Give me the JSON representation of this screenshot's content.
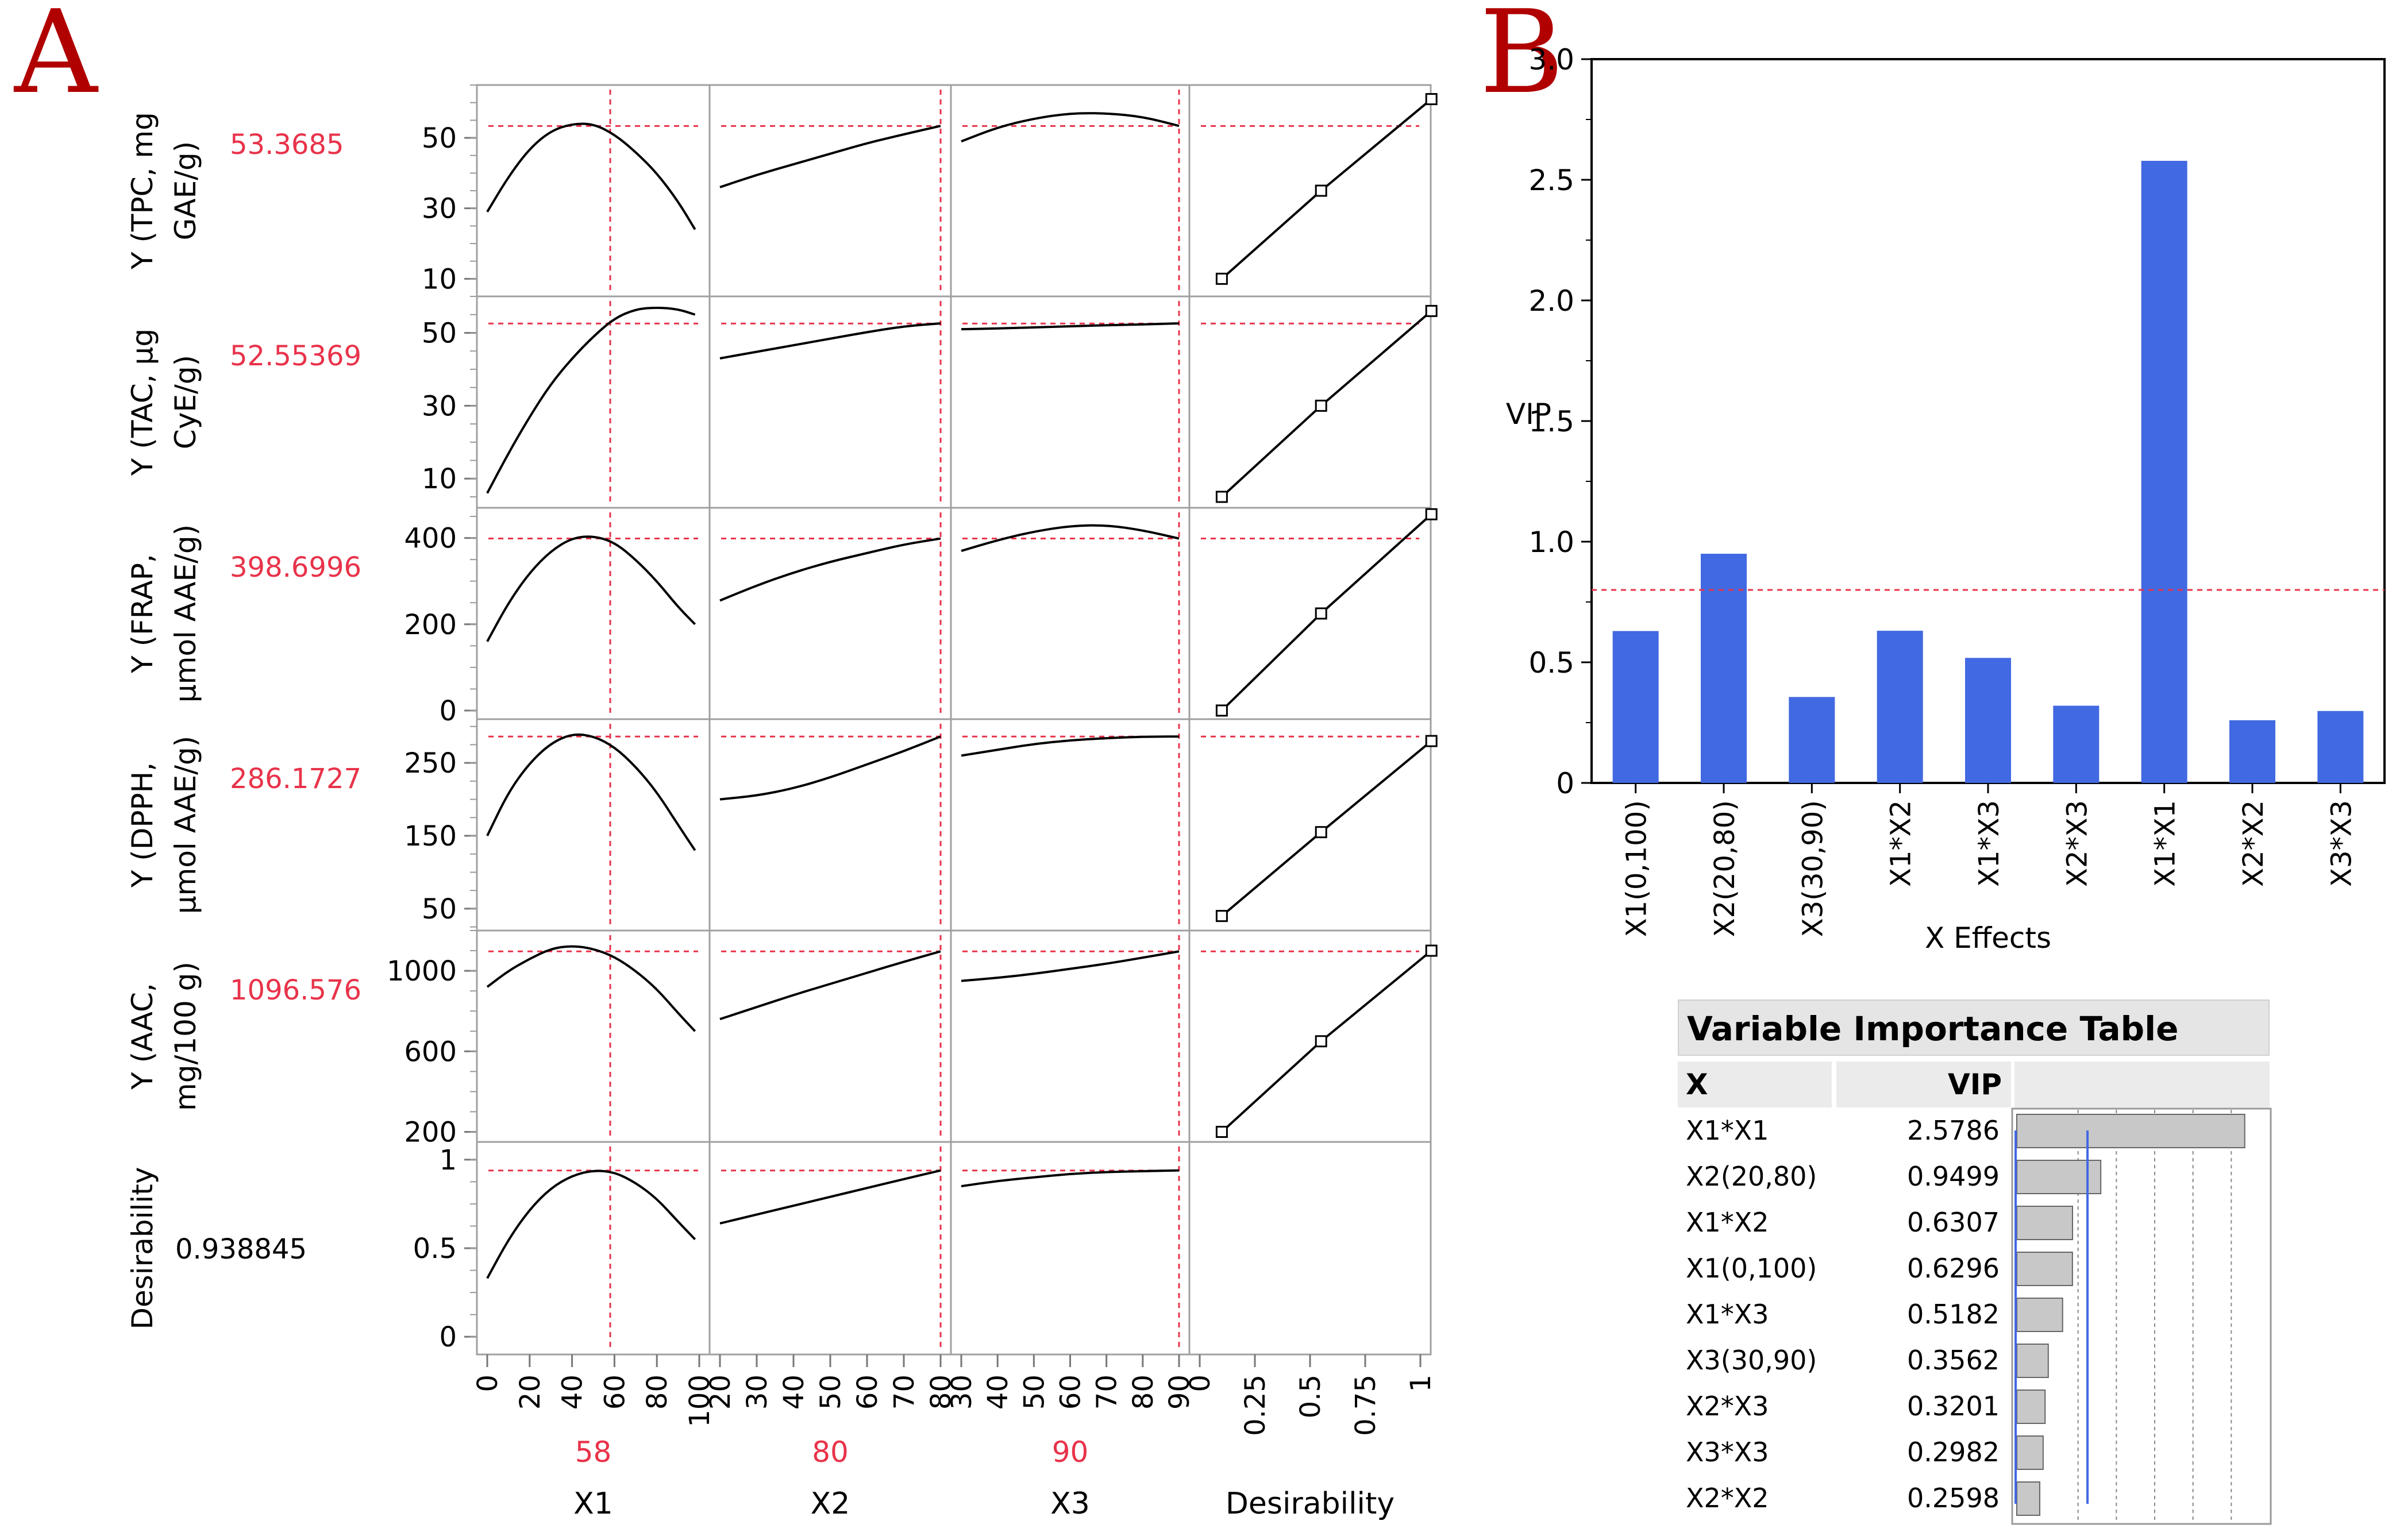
{
  "panel_labels": {
    "a": "A",
    "b": "B"
  },
  "colors": {
    "accent_red": "#e8334a",
    "bar_blue": "#4169e1",
    "gray_bar": "#c8c8c8",
    "panel_letter": "#b00000"
  },
  "chart_data": [
    {
      "type": "line",
      "title": "Prediction profiler",
      "x_factors": [
        {
          "name": "X1",
          "current": "58",
          "x_value": 58,
          "xlim": [
            0,
            100
          ],
          "ticks": [
            "0",
            "20",
            "40",
            "60",
            "80",
            "100"
          ],
          "tick_values": [
            0,
            20,
            40,
            60,
            80,
            100
          ]
        },
        {
          "name": "X2",
          "current": "80",
          "x_value": 80,
          "xlim": [
            20,
            80
          ],
          "ticks": [
            "20",
            "30",
            "40",
            "50",
            "60",
            "70",
            "80"
          ],
          "tick_values": [
            20,
            30,
            40,
            50,
            60,
            70,
            80
          ]
        },
        {
          "name": "X3",
          "current": "90",
          "x_value": 90,
          "xlim": [
            30,
            90
          ],
          "ticks": [
            "30",
            "40",
            "50",
            "60",
            "70",
            "80",
            "90"
          ],
          "tick_values": [
            30,
            40,
            50,
            60,
            70,
            80,
            90
          ]
        },
        {
          "name": "Desirability",
          "current": "",
          "x_value": null,
          "xlim": [
            0,
            1
          ],
          "ticks": [
            "0",
            "0.25",
            "0.5",
            "0.75",
            "1"
          ],
          "tick_values": [
            0,
            0.25,
            0.5,
            0.75,
            1
          ]
        }
      ],
      "responses": [
        {
          "label_line1": "Y (TPC, mg",
          "label_line2": "GAE/g)",
          "value": "53.3685",
          "current_y": 53.3685,
          "ylim": [
            5,
            65
          ],
          "ticks": [
            "10",
            "30",
            "50"
          ],
          "tick_values": [
            10,
            30,
            50
          ],
          "curves": [
            {
              "x": [
                0,
                10,
                20,
                30,
                40,
                50,
                60,
                70,
                80,
                90,
                98
              ],
              "y": [
                29,
                39,
                47,
                52,
                54,
                54,
                51,
                46,
                40,
                32,
                24
              ]
            },
            {
              "x": [
                20,
                30,
                40,
                50,
                60,
                70,
                80
              ],
              "y": [
                36,
                39.5,
                42.5,
                45.5,
                48.5,
                51,
                53.4
              ]
            },
            {
              "x": [
                30,
                40,
                50,
                60,
                70,
                80,
                90
              ],
              "y": [
                49,
                53,
                55.5,
                57,
                57,
                56,
                53.4
              ]
            },
            {
              "x": [
                0.1,
                0.55,
                1.05
              ],
              "y": [
                10,
                35,
                61
              ]
            }
          ]
        },
        {
          "label_line1": "Y (TAC, µg",
          "label_line2": "CyE/g)",
          "value": "52.55369",
          "current_y": 52.55369,
          "ylim": [
            2,
            60
          ],
          "ticks": [
            "10",
            "30",
            "50"
          ],
          "tick_values": [
            10,
            30,
            50
          ],
          "curves": [
            {
              "x": [
                0,
                10,
                20,
                30,
                40,
                50,
                60,
                70,
                80,
                90,
                98
              ],
              "y": [
                6,
                17,
                27,
                36,
                43,
                49,
                54,
                56.5,
                57,
                56.5,
                55
              ]
            },
            {
              "x": [
                20,
                30,
                40,
                50,
                60,
                70,
                80
              ],
              "y": [
                43,
                44.8,
                46.6,
                48.4,
                50.2,
                51.8,
                52.6
              ]
            },
            {
              "x": [
                30,
                40,
                50,
                60,
                70,
                80,
                90
              ],
              "y": [
                51,
                51.2,
                51.5,
                51.8,
                52.1,
                52.3,
                52.6
              ]
            },
            {
              "x": [
                0.1,
                0.55,
                1.05
              ],
              "y": [
                5,
                30,
                56
              ]
            }
          ]
        },
        {
          "label_line1": "Y (FRAP,",
          "label_line2": "µmol AAE/g)",
          "value": "398.6996",
          "current_y": 398.6996,
          "ylim": [
            -20,
            470
          ],
          "ticks": [
            "0",
            "200",
            "400"
          ],
          "tick_values": [
            0,
            200,
            400
          ],
          "curves": [
            {
              "x": [
                0,
                10,
                20,
                30,
                40,
                50,
                60,
                70,
                80,
                90,
                98
              ],
              "y": [
                160,
                250,
                320,
                370,
                400,
                405,
                390,
                350,
                300,
                240,
                200
              ]
            },
            {
              "x": [
                20,
                30,
                40,
                50,
                60,
                70,
                80
              ],
              "y": [
                255,
                290,
                320,
                345,
                365,
                385,
                398.7
              ]
            },
            {
              "x": [
                30,
                40,
                50,
                60,
                70,
                80,
                90
              ],
              "y": [
                370,
                395,
                415,
                428,
                430,
                418,
                398.7
              ]
            },
            {
              "x": [
                0.1,
                0.55,
                1.05
              ],
              "y": [
                0,
                225,
                455
              ]
            }
          ]
        },
        {
          "label_line1": "Y (DPPH,",
          "label_line2": "µmol AAE/g)",
          "value": "286.1727",
          "current_y": 286.1727,
          "ylim": [
            20,
            310
          ],
          "ticks": [
            "50",
            "150",
            "250"
          ],
          "tick_values": [
            50,
            150,
            250
          ],
          "curves": [
            {
              "x": [
                0,
                10,
                20,
                30,
                40,
                50,
                60,
                70,
                80,
                90,
                98
              ],
              "y": [
                150,
                210,
                250,
                277,
                290,
                287,
                272,
                245,
                210,
                165,
                130
              ]
            },
            {
              "x": [
                20,
                30,
                40,
                50,
                60,
                70,
                80
              ],
              "y": [
                200,
                205,
                215,
                230,
                248,
                266,
                286.2
              ]
            },
            {
              "x": [
                30,
                40,
                50,
                60,
                70,
                80,
                90
              ],
              "y": [
                260,
                268,
                276,
                281,
                284,
                286,
                286.2
              ]
            },
            {
              "x": [
                0.1,
                0.55,
                1.05
              ],
              "y": [
                40,
                155,
                280
              ]
            }
          ]
        },
        {
          "label_line1": "Y (AAC,",
          "label_line2": "mg/100 g)",
          "value": "1096.576",
          "current_y": 1096.576,
          "ylim": [
            150,
            1200
          ],
          "ticks": [
            "200",
            "600",
            "1000"
          ],
          "tick_values": [
            200,
            600,
            1000
          ],
          "curves": [
            {
              "x": [
                0,
                10,
                20,
                30,
                40,
                50,
                60,
                70,
                80,
                90,
                98
              ],
              "y": [
                920,
                1000,
                1060,
                1110,
                1125,
                1110,
                1070,
                1000,
                910,
                790,
                700
              ]
            },
            {
              "x": [
                20,
                30,
                40,
                50,
                60,
                70,
                80
              ],
              "y": [
                760,
                820,
                880,
                935,
                990,
                1045,
                1096.6
              ]
            },
            {
              "x": [
                30,
                40,
                50,
                60,
                70,
                80,
                90
              ],
              "y": [
                950,
                965,
                985,
                1010,
                1035,
                1065,
                1096.6
              ]
            },
            {
              "x": [
                0.1,
                0.55,
                1.05
              ],
              "y": [
                200,
                650,
                1100
              ]
            }
          ]
        },
        {
          "label_line1": "Desirability",
          "label_line2": "",
          "value": "0.938845",
          "current_y": 0.938845,
          "ylim": [
            -0.1,
            1.1
          ],
          "ticks": [
            "0",
            "0.5",
            "1"
          ],
          "tick_values": [
            0,
            0.5,
            1
          ],
          "curves": [
            {
              "x": [
                0,
                10,
                20,
                30,
                40,
                50,
                60,
                70,
                80,
                90,
                98
              ],
              "y": [
                0.33,
                0.55,
                0.72,
                0.84,
                0.91,
                0.94,
                0.93,
                0.87,
                0.78,
                0.65,
                0.55
              ]
            },
            {
              "x": [
                20,
                30,
                40,
                50,
                60,
                70,
                80
              ],
              "y": [
                0.64,
                0.69,
                0.74,
                0.79,
                0.84,
                0.89,
                0.939
              ]
            },
            {
              "x": [
                30,
                40,
                50,
                60,
                70,
                80,
                90
              ],
              "y": [
                0.85,
                0.88,
                0.9,
                0.92,
                0.93,
                0.935,
                0.939
              ]
            }
          ]
        }
      ]
    },
    {
      "type": "bar",
      "title": "",
      "xlabel": "X Effects",
      "ylabel": "VIP",
      "categories": [
        "X1(0,100)",
        "X2(20,80)",
        "X3(30,90)",
        "X1*X2",
        "X1*X3",
        "X2*X3",
        "X1*X1",
        "X2*X2",
        "X3*X3"
      ],
      "values": [
        0.6296,
        0.9499,
        0.3562,
        0.6307,
        0.5182,
        0.3201,
        2.5786,
        0.2598,
        0.2982
      ],
      "ylim": [
        0,
        3.0
      ],
      "yticks": [
        "0",
        "0.5",
        "1.0",
        "1.5",
        "2.0",
        "2.5",
        "3.0"
      ],
      "ytick_values": [
        0,
        0.5,
        1.0,
        1.5,
        2.0,
        2.5,
        3.0
      ],
      "threshold": 0.8
    },
    {
      "type": "table",
      "title": "Variable Importance Table",
      "columns": [
        "X",
        "VIP"
      ],
      "rows": [
        {
          "x": "X1*X1",
          "vip": "2.5786",
          "v": 2.5786
        },
        {
          "x": "X2(20,80)",
          "vip": "0.9499",
          "v": 0.9499
        },
        {
          "x": "X1*X2",
          "vip": "0.6307",
          "v": 0.6307
        },
        {
          "x": "X1(0,100)",
          "vip": "0.6296",
          "v": 0.6296
        },
        {
          "x": "X1*X3",
          "vip": "0.5182",
          "v": 0.5182
        },
        {
          "x": "X3(30,90)",
          "vip": "0.3562",
          "v": 0.3562
        },
        {
          "x": "X2*X3",
          "vip": "0.3201",
          "v": 0.3201
        },
        {
          "x": "X3*X3",
          "vip": "0.2982",
          "v": 0.2982
        },
        {
          "x": "X2*X2",
          "vip": "0.2598",
          "v": 0.2598
        }
      ],
      "bar_scale_max": 2.6,
      "threshold": 0.8
    }
  ]
}
